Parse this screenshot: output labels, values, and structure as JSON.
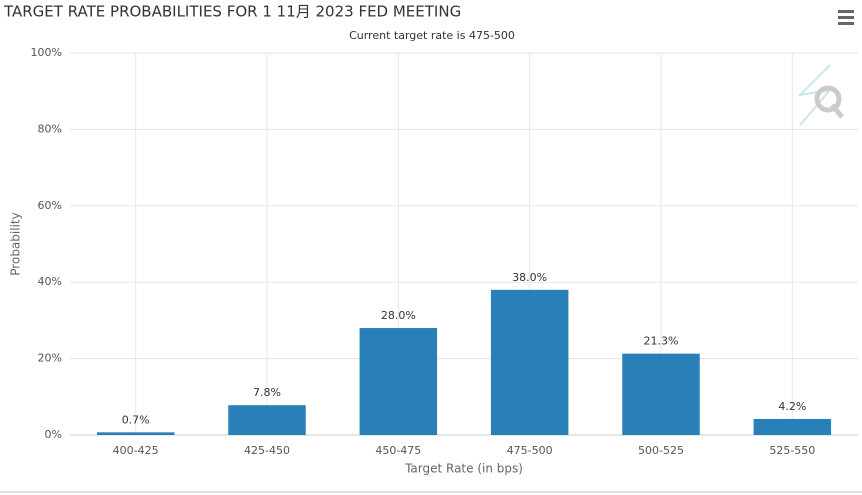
{
  "chart_data": {
    "type": "bar",
    "title": "TARGET RATE PROBABILITIES FOR 1 11月 2023 FED MEETING",
    "subtitle": "Current target rate is 475-500",
    "x_label": "Target Rate (in bps)",
    "y_label": "Probability",
    "categories": [
      "400-425",
      "425-450",
      "450-475",
      "475-500",
      "500-525",
      "525-550"
    ],
    "values": [
      0.7,
      7.8,
      28.0,
      38.0,
      21.3,
      4.2
    ],
    "value_labels": [
      "0.7%",
      "7.8%",
      "28.0%",
      "38.0%",
      "21.3%",
      "4.2%"
    ],
    "color": "#2980b9",
    "ylim": [
      0,
      100
    ],
    "yticks": [
      {
        "value": 0,
        "label": "0%"
      },
      {
        "value": 20,
        "label": "20%"
      },
      {
        "value": 40,
        "label": "40%"
      },
      {
        "value": 60,
        "label": "60%"
      },
      {
        "value": 80,
        "label": "80%"
      },
      {
        "value": 100,
        "label": "100%"
      }
    ],
    "grid": true
  }
}
